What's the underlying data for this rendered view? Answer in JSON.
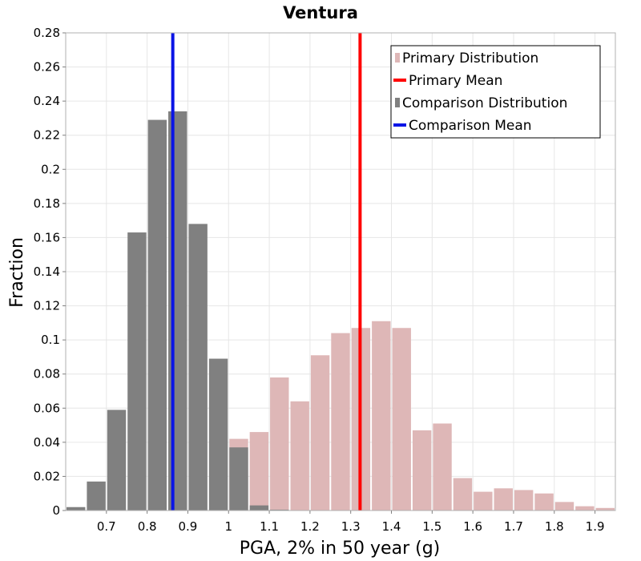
{
  "chart_data": {
    "type": "bar",
    "title": "Ventura",
    "xlabel": "PGA, 2% in 50 year (g)",
    "ylabel": "Fraction",
    "xlim": [
      0.6,
      1.95
    ],
    "ylim": [
      0,
      0.28
    ],
    "bin_width": 0.05,
    "x_ticks": [
      "0.7",
      "0.8",
      "0.9",
      "1",
      "1.1",
      "1.2",
      "1.3",
      "1.4",
      "1.5",
      "1.6",
      "1.7",
      "1.8",
      "1.9"
    ],
    "y_ticks": [
      "0",
      "0.02",
      "0.04",
      "0.06",
      "0.08",
      "0.1",
      "0.12",
      "0.14",
      "0.16",
      "0.18",
      "0.2",
      "0.22",
      "0.24",
      "0.26",
      "0.28"
    ],
    "grid": true,
    "legend_position": "top-right",
    "series": [
      {
        "name": "Primary Distribution",
        "kind": "histogram",
        "color": "#deb7b7",
        "bins": [
          {
            "x": 1.025,
            "value": 0.042
          },
          {
            "x": 1.075,
            "value": 0.046
          },
          {
            "x": 1.125,
            "value": 0.078
          },
          {
            "x": 1.175,
            "value": 0.064
          },
          {
            "x": 1.225,
            "value": 0.091
          },
          {
            "x": 1.275,
            "value": 0.104
          },
          {
            "x": 1.325,
            "value": 0.107
          },
          {
            "x": 1.375,
            "value": 0.111
          },
          {
            "x": 1.425,
            "value": 0.107
          },
          {
            "x": 1.475,
            "value": 0.047
          },
          {
            "x": 1.525,
            "value": 0.051
          },
          {
            "x": 1.575,
            "value": 0.019
          },
          {
            "x": 1.625,
            "value": 0.011
          },
          {
            "x": 1.675,
            "value": 0.013
          },
          {
            "x": 1.725,
            "value": 0.012
          },
          {
            "x": 1.775,
            "value": 0.01
          },
          {
            "x": 1.825,
            "value": 0.005
          },
          {
            "x": 1.875,
            "value": 0.0025
          },
          {
            "x": 1.925,
            "value": 0.0015
          }
        ]
      },
      {
        "name": "Primary Mean",
        "kind": "vline",
        "color": "#ff0000",
        "x": 1.323
      },
      {
        "name": "Comparison Distribution",
        "kind": "histogram",
        "color": "#808080",
        "bins": [
          {
            "x": 0.625,
            "value": 0.002
          },
          {
            "x": 0.675,
            "value": 0.017
          },
          {
            "x": 0.725,
            "value": 0.059
          },
          {
            "x": 0.775,
            "value": 0.163
          },
          {
            "x": 0.825,
            "value": 0.229
          },
          {
            "x": 0.875,
            "value": 0.234
          },
          {
            "x": 0.925,
            "value": 0.168
          },
          {
            "x": 0.975,
            "value": 0.089
          },
          {
            "x": 1.025,
            "value": 0.037
          },
          {
            "x": 1.075,
            "value": 0.003
          },
          {
            "x": 1.125,
            "value": 0.0005
          }
        ]
      },
      {
        "name": "Comparison Mean",
        "kind": "vline",
        "color": "#0a14e6",
        "x": 0.863
      }
    ]
  }
}
